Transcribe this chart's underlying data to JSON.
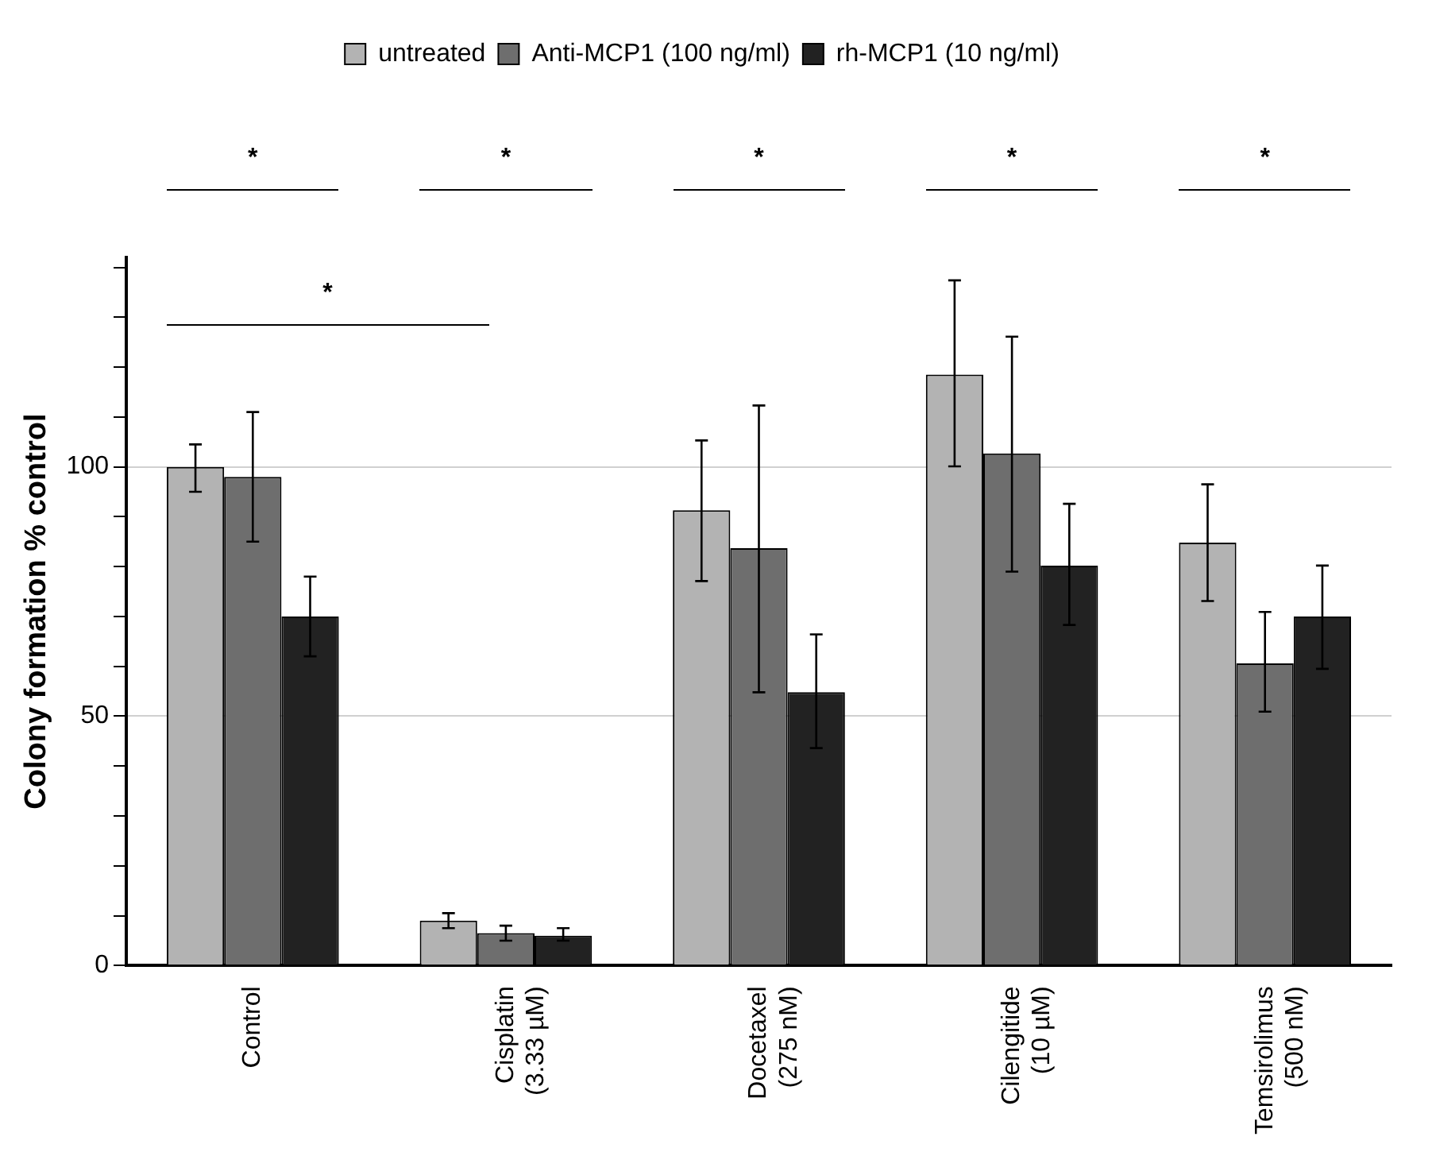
{
  "chart_data": {
    "type": "bar",
    "ylabel": "Colony formation % control",
    "categories": [
      "Control",
      "Cisplatin (3.33 µM)",
      "Docetaxel (275 nM)",
      "Cilengitide (10 µM)",
      "Temsirolimus (500 nM)"
    ],
    "series": [
      {
        "name": "untreated",
        "color": "#b3b3b3",
        "values": [
          100,
          9,
          91.3,
          118.5,
          84.8
        ],
        "errors": [
          [
            95,
            104.5
          ],
          [
            7.5,
            10.5
          ],
          [
            77.1,
            105.3
          ],
          [
            100.1,
            137.4
          ],
          [
            73.1,
            96.5
          ]
        ]
      },
      {
        "name": "Anti-MCP1 (100 ng/ml)",
        "color": "#6e6e6e",
        "values": [
          98,
          6.5,
          83.7,
          102.7,
          60.6
        ],
        "errors": [
          [
            85,
            111
          ],
          [
            5,
            8
          ],
          [
            54.8,
            112.3
          ],
          [
            79,
            126.1
          ],
          [
            50.9,
            70.9
          ]
        ]
      },
      {
        "name": "rh-MCP1 (10 ng/ml)",
        "color": "#222222",
        "values": [
          70,
          6,
          54.8,
          80.2,
          70
        ],
        "errors": [
          [
            62,
            78
          ],
          [
            5,
            7.5
          ],
          [
            43.6,
            66.4
          ],
          [
            68.3,
            92.6
          ],
          [
            59.5,
            80.2
          ]
        ]
      }
    ],
    "ylim": [
      0,
      142
    ],
    "yticks": [
      0,
      {
        "value": 10,
        "label": null
      },
      {
        "value": 20,
        "label": null
      },
      {
        "value": 30,
        "label": null
      },
      {
        "value": 40,
        "label": null
      },
      50,
      {
        "value": 60,
        "label": null
      },
      {
        "value": 70,
        "label": null
      },
      {
        "value": 80,
        "label": null
      },
      {
        "value": 90,
        "label": null
      },
      100,
      {
        "value": 110,
        "label": null
      },
      {
        "value": 120,
        "label": null
      },
      {
        "value": 130,
        "label": null
      },
      {
        "value": 140,
        "label": null
      }
    ],
    "grid": "y",
    "legend": "top",
    "annotations": [
      "*",
      "*",
      "*",
      "*",
      "*",
      "*"
    ]
  }
}
